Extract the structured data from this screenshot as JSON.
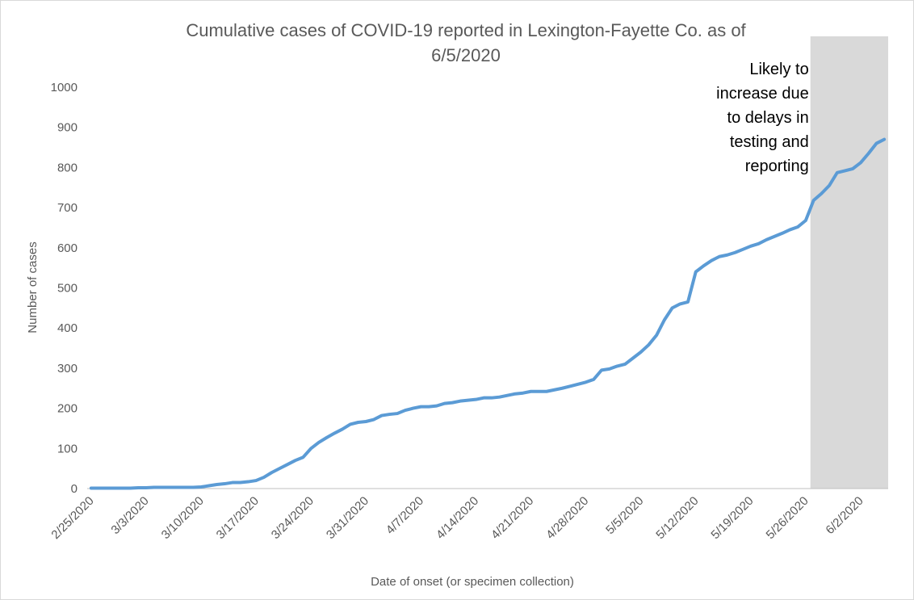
{
  "chart_data": {
    "type": "line",
    "title": [
      "Cumulative cases of COVID-19 reported in Lexington-Fayette Co.  as of",
      "6/5/2020"
    ],
    "x_label": "Date of onset (or specimen collection)",
    "y_label": "Number of cases",
    "categories": [
      "2/25/2020",
      null,
      null,
      null,
      null,
      null,
      null,
      "3/3/2020",
      null,
      null,
      null,
      null,
      null,
      null,
      "3/10/2020",
      null,
      null,
      null,
      null,
      null,
      null,
      "3/17/2020",
      null,
      null,
      null,
      null,
      null,
      null,
      "3/24/2020",
      null,
      null,
      null,
      null,
      null,
      null,
      "3/31/2020",
      null,
      null,
      null,
      null,
      null,
      null,
      "4/7/2020",
      null,
      null,
      null,
      null,
      null,
      null,
      "4/14/2020",
      null,
      null,
      null,
      null,
      null,
      null,
      "4/21/2020",
      null,
      null,
      null,
      null,
      null,
      null,
      "4/28/2020",
      null,
      null,
      null,
      null,
      null,
      null,
      "5/5/2020",
      null,
      null,
      null,
      null,
      null,
      null,
      "5/12/2020",
      null,
      null,
      null,
      null,
      null,
      null,
      "5/19/2020",
      null,
      null,
      null,
      null,
      null,
      null,
      "5/26/2020",
      null,
      null,
      null,
      null,
      null,
      null,
      "6/2/2020",
      null,
      null,
      null
    ],
    "values": [
      1,
      1,
      1,
      1,
      1,
      1,
      2,
      2,
      3,
      3,
      3,
      3,
      3,
      3,
      4,
      7,
      10,
      12,
      15,
      15,
      17,
      20,
      28,
      40,
      50,
      60,
      70,
      78,
      100,
      115,
      127,
      138,
      148,
      160,
      165,
      167,
      172,
      182,
      185,
      187,
      195,
      200,
      204,
      204,
      206,
      212,
      214,
      218,
      220,
      222,
      226,
      226,
      228,
      232,
      236,
      238,
      242,
      242,
      242,
      246,
      250,
      255,
      260,
      265,
      272,
      295,
      298,
      305,
      310,
      325,
      340,
      358,
      382,
      420,
      450,
      460,
      465,
      540,
      555,
      568,
      578,
      582,
      588,
      596,
      604,
      610,
      620,
      628,
      636,
      645,
      652,
      668,
      718,
      735,
      755,
      787,
      792,
      797,
      812,
      835,
      860,
      870
    ],
    "color": "#5b9bd5",
    "ylim": [
      0,
      1000
    ],
    "yticks": [
      0,
      100,
      200,
      300,
      400,
      500,
      600,
      700,
      800,
      900,
      1000
    ],
    "shaded_region": {
      "from": "5/26/2020",
      "color": "#d9d9d9",
      "annotation": [
        "Likely to",
        "increase due",
        "to delays in",
        "testing and",
        "reporting"
      ]
    }
  }
}
